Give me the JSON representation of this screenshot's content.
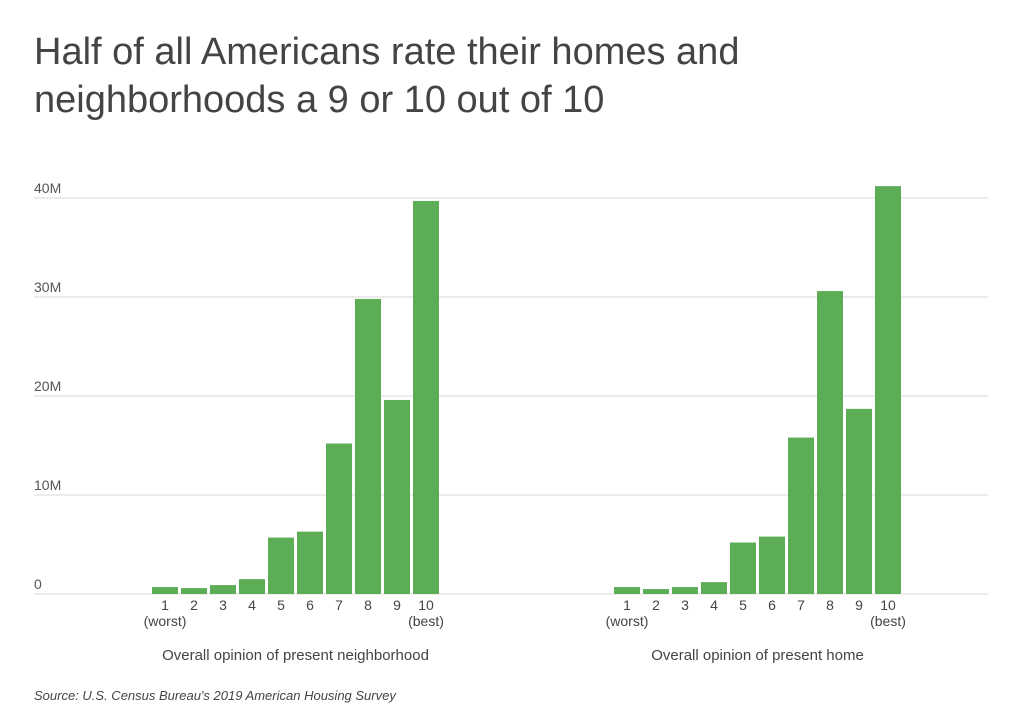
{
  "title": "Half of all Americans rate their homes and neighborhoods a 9 or 10 out of 10",
  "source": "Source: U.S. Census Bureau's 2019 American Housing Survey",
  "colors": {
    "bar": "#5cad56",
    "grid": "#d9d9d9",
    "text": "#444444"
  },
  "chart_data": {
    "type": "bar",
    "ylim": [
      0,
      40000000
    ],
    "yticks": [
      {
        "value": 0,
        "label": "0"
      },
      {
        "value": 10000000,
        "label": "10M"
      },
      {
        "value": 20000000,
        "label": "20M"
      },
      {
        "value": 30000000,
        "label": "30M"
      },
      {
        "value": 40000000,
        "label": "40M"
      }
    ],
    "categories": [
      "1",
      "2",
      "3",
      "4",
      "5",
      "6",
      "7",
      "8",
      "9",
      "10"
    ],
    "category_sublabels": {
      "1": "(worst)",
      "10": "(best)"
    },
    "panels": [
      {
        "xlabel": "Overall opinion of present neighborhood",
        "values": [
          700000,
          600000,
          900000,
          1500000,
          5700000,
          6300000,
          15200000,
          29800000,
          19600000,
          39700000
        ]
      },
      {
        "xlabel": "Overall opinion of present home",
        "values": [
          700000,
          500000,
          700000,
          1200000,
          5200000,
          5800000,
          15800000,
          30600000,
          18700000,
          41200000
        ]
      }
    ]
  }
}
